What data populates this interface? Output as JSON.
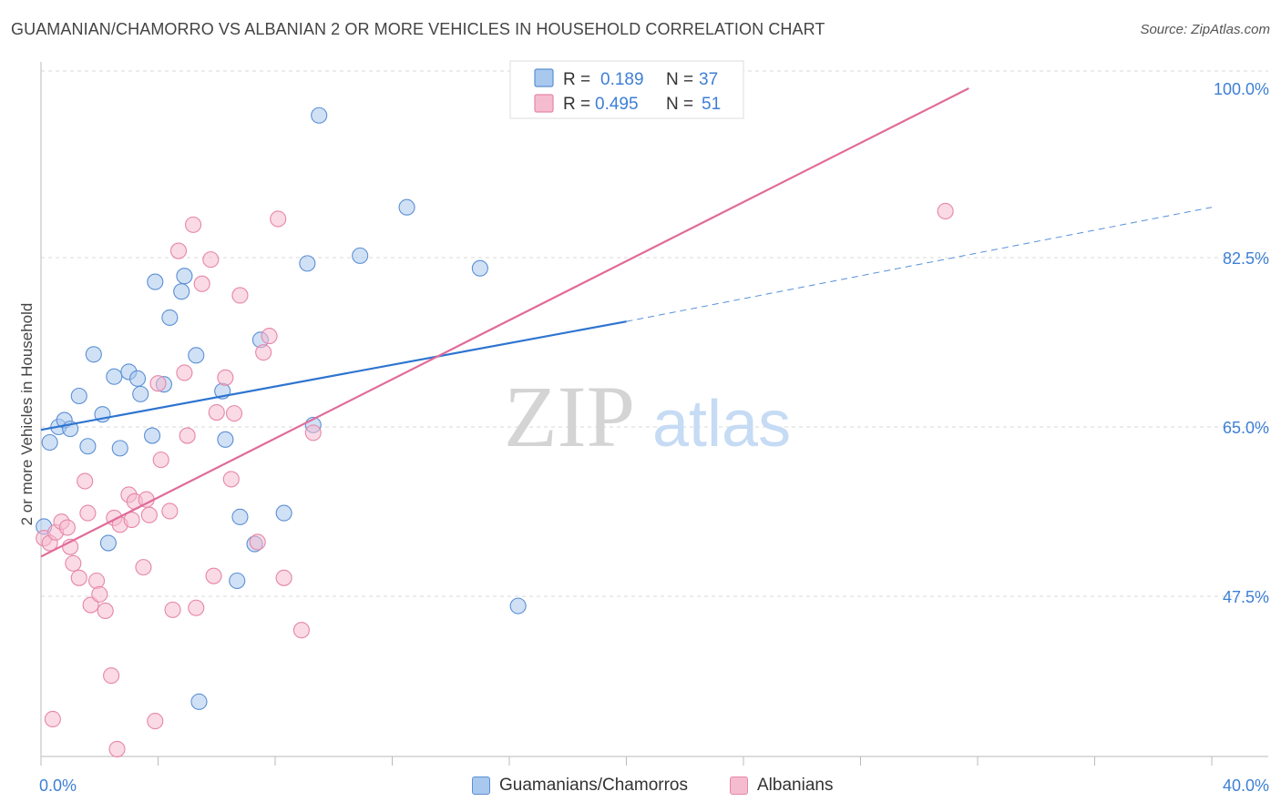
{
  "header": {
    "title": "GUAMANIAN/CHAMORRO VS ALBANIAN 2 OR MORE VEHICLES IN HOUSEHOLD CORRELATION CHART",
    "source": "Source: ZipAtlas.com"
  },
  "watermark": {
    "zip": "ZIP",
    "atlas": "atlas"
  },
  "colors": {
    "blue_fill": "#a9c8ee",
    "blue_stroke": "#5b8fd4",
    "blue_line": "#2d74d0",
    "pink_fill": "#f5bcd0",
    "pink_stroke": "#e686a8",
    "pink_line": "#e06b98",
    "axis_text": "#3d7fd6",
    "grid": "#d9d9d9"
  },
  "stats_legend": [
    {
      "r_label": "R =",
      "r_value": "0.189",
      "n_label": "N =",
      "n_value": "37"
    },
    {
      "r_label": "R =",
      "r_value": "0.495",
      "n_label": "N =",
      "n_value": "51"
    }
  ],
  "bottom_legend": [
    "Guamanians/Chamorros",
    "Albanians"
  ],
  "chart_data": {
    "type": "scatter",
    "title": "GUAMANIAN/CHAMORRO VS ALBANIAN 2 OR MORE VEHICLES IN HOUSEHOLD CORRELATION CHART",
    "xlabel": "",
    "ylabel": "2 or more Vehicles in Household",
    "xlim": [
      0,
      40
    ],
    "ylim": [
      31.5,
      101.5
    ],
    "x_tick_labels": [
      "0.0%",
      "40.0%"
    ],
    "y_ticks": [
      47.5,
      65.0,
      82.5,
      100.0
    ],
    "y_tick_labels": [
      "47.5%",
      "65.0%",
      "82.5%",
      "100.0%"
    ],
    "grid": true,
    "legend_position": "top-center",
    "series": [
      {
        "name": "Guamanians/Chamorros",
        "r": 0.189,
        "n": 37,
        "trend": {
          "x_start": 0,
          "y_start": 64.7,
          "x_solid_end": 20,
          "y_solid_end": 75.9,
          "x_dash_end": 40,
          "y_dash_end": 87.7
        },
        "points": [
          [
            0.1,
            54.7
          ],
          [
            0.3,
            63.4
          ],
          [
            0.6,
            65.0
          ],
          [
            0.8,
            65.7
          ],
          [
            1.0,
            64.8
          ],
          [
            1.3,
            68.2
          ],
          [
            1.6,
            63.0
          ],
          [
            1.8,
            72.5
          ],
          [
            2.1,
            66.3
          ],
          [
            2.3,
            53.0
          ],
          [
            2.5,
            70.2
          ],
          [
            2.7,
            62.8
          ],
          [
            3.0,
            70.7
          ],
          [
            3.3,
            70.0
          ],
          [
            3.4,
            68.4
          ],
          [
            3.8,
            64.1
          ],
          [
            3.9,
            80.0
          ],
          [
            4.2,
            69.4
          ],
          [
            4.4,
            76.3
          ],
          [
            4.8,
            79.0
          ],
          [
            4.9,
            80.6
          ],
          [
            5.3,
            72.4
          ],
          [
            5.4,
            36.6
          ],
          [
            6.2,
            68.7
          ],
          [
            6.3,
            63.7
          ],
          [
            6.8,
            55.7
          ],
          [
            6.7,
            49.1
          ],
          [
            7.3,
            52.9
          ],
          [
            7.5,
            74.0
          ],
          [
            8.3,
            56.1
          ],
          [
            9.1,
            81.9
          ],
          [
            9.3,
            65.2
          ],
          [
            9.5,
            97.2
          ],
          [
            10.9,
            82.7
          ],
          [
            12.5,
            87.7
          ],
          [
            15.0,
            81.4
          ],
          [
            16.3,
            46.5
          ]
        ]
      },
      {
        "name": "Albanians",
        "r": 0.495,
        "n": 51,
        "trend": {
          "x_start": 0,
          "y_start": 51.6,
          "x_end": 31.7,
          "y_end": 100.0
        },
        "points": [
          [
            0.1,
            53.5
          ],
          [
            0.3,
            53.0
          ],
          [
            0.4,
            34.8
          ],
          [
            0.5,
            54.1
          ],
          [
            0.7,
            55.2
          ],
          [
            0.9,
            54.6
          ],
          [
            1.0,
            52.6
          ],
          [
            1.1,
            50.9
          ],
          [
            1.3,
            49.4
          ],
          [
            1.5,
            59.4
          ],
          [
            1.6,
            56.1
          ],
          [
            1.7,
            46.6
          ],
          [
            1.9,
            49.1
          ],
          [
            2.0,
            47.7
          ],
          [
            2.2,
            46.0
          ],
          [
            2.4,
            39.3
          ],
          [
            2.5,
            55.6
          ],
          [
            2.6,
            31.7
          ],
          [
            2.7,
            54.9
          ],
          [
            3.0,
            58.0
          ],
          [
            3.1,
            55.4
          ],
          [
            3.2,
            57.3
          ],
          [
            3.5,
            50.5
          ],
          [
            3.6,
            57.5
          ],
          [
            3.7,
            55.9
          ],
          [
            3.9,
            34.6
          ],
          [
            4.0,
            69.5
          ],
          [
            4.1,
            61.6
          ],
          [
            4.4,
            56.3
          ],
          [
            4.5,
            46.1
          ],
          [
            4.7,
            83.2
          ],
          [
            4.9,
            70.6
          ],
          [
            5.0,
            64.1
          ],
          [
            5.2,
            85.9
          ],
          [
            5.3,
            46.3
          ],
          [
            5.5,
            79.8
          ],
          [
            5.8,
            82.3
          ],
          [
            5.9,
            49.6
          ],
          [
            6.0,
            66.5
          ],
          [
            6.3,
            70.1
          ],
          [
            6.5,
            59.6
          ],
          [
            6.6,
            66.4
          ],
          [
            6.8,
            78.6
          ],
          [
            7.4,
            53.1
          ],
          [
            7.6,
            72.7
          ],
          [
            7.8,
            74.4
          ],
          [
            8.1,
            86.5
          ],
          [
            8.3,
            49.4
          ],
          [
            8.9,
            44.0
          ],
          [
            9.3,
            64.4
          ],
          [
            30.9,
            87.3
          ]
        ]
      }
    ]
  }
}
